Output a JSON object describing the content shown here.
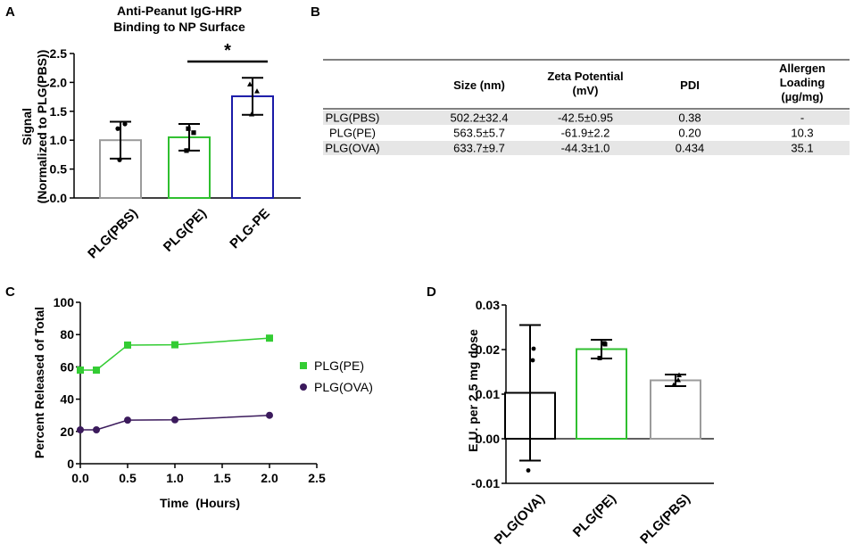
{
  "panels": [
    {
      "letter": "A"
    },
    {
      "letter": "B"
    },
    {
      "letter": "C"
    },
    {
      "letter": "D"
    }
  ],
  "colors": {
    "gray_bar": "#9b9b9b",
    "green_bar": "#2fbf2f",
    "blue_bar": "#1a1aa8",
    "pe_line": "#33cc33",
    "ova_line": "#3b1a5c",
    "table_shade": "#e6e6e6"
  },
  "chart_data": [
    {
      "id": "A",
      "type": "bar",
      "title": [
        "Anti-Peanut IgG-HRP",
        "Binding to NP Surface"
      ],
      "ylabel": [
        "Signal",
        "(Normalized to PLG(PBS))"
      ],
      "xlabel": "",
      "ylim": [
        0,
        2.5
      ],
      "yticks": [
        "0.0",
        "0.5",
        "1.0",
        "1.5",
        "2.0",
        "2.5"
      ],
      "categories": [
        "PLG(PBS)",
        "PLG(PE)",
        "PLG-PE"
      ],
      "values": [
        1.0,
        1.05,
        1.76
      ],
      "error": [
        0.32,
        0.23,
        0.32
      ],
      "points": [
        [
          1.2,
          1.28,
          0.66
        ],
        [
          0.82,
          1.13,
          1.2
        ],
        [
          1.97,
          1.85,
          1.45
        ]
      ],
      "colors": [
        "#9b9b9b",
        "#2fbf2f",
        "#1a1aa8"
      ],
      "significance": {
        "between": [
          "PLG(PE)",
          "PLG-PE"
        ],
        "label": "*"
      }
    },
    {
      "id": "C",
      "type": "line",
      "title": "",
      "xlabel": "Time  (Hours)",
      "ylabel": "Percent Released of Total",
      "xlim": [
        0,
        2.5
      ],
      "ylim": [
        0,
        100
      ],
      "xticks": [
        "0.0",
        "0.5",
        "1.0",
        "1.5",
        "2.0",
        "2.5"
      ],
      "yticks": [
        "0",
        "20",
        "40",
        "60",
        "80",
        "100"
      ],
      "series": [
        {
          "name": "PLG(PE)",
          "x": [
            0,
            0.17,
            0.5,
            1.0,
            2.0
          ],
          "y": [
            58,
            58,
            73.5,
            73.7,
            77.8
          ],
          "marker": "square",
          "color": "#33cc33"
        },
        {
          "name": "PLG(OVA)",
          "x": [
            0,
            0.17,
            0.5,
            1.0,
            2.0
          ],
          "y": [
            21,
            21,
            27,
            27.2,
            30
          ],
          "marker": "circle",
          "color": "#3b1a5c"
        }
      ],
      "legend": "right"
    },
    {
      "id": "D",
      "type": "bar",
      "title": "",
      "ylabel": "E.U. per 2.5 mg dose",
      "xlabel": "",
      "ylim": [
        -0.01,
        0.03
      ],
      "yticks": [
        "-0.01",
        "0.00",
        "0.01",
        "0.02",
        "0.03"
      ],
      "categories": [
        "PLG(OVA)",
        "PLG(PE)",
        "PLG(PBS)"
      ],
      "values": [
        0.0103,
        0.0201,
        0.0131
      ],
      "error": [
        0.0152,
        0.0021,
        0.0013
      ],
      "points": [
        [
          0.0202,
          0.0176,
          -0.0071
        ],
        [
          0.0212,
          0.0214,
          0.0181
        ],
        [
          0.0143,
          0.0132,
          0.0121
        ]
      ],
      "colors": [
        "#000000",
        "#2fbf2f",
        "#9b9b9b"
      ],
      "zero_line": true
    }
  ],
  "table": {
    "headers": [
      "",
      "Size (nm)",
      "Zeta Potential (mV)",
      "PDI",
      "Allergen Loading (µg/mg)"
    ],
    "header_lines": [
      [
        ""
      ],
      [
        "Size (nm)"
      ],
      [
        "Zeta Potential",
        "(mV)"
      ],
      [
        "PDI"
      ],
      [
        "Allergen",
        "Loading",
        "(µg/mg)"
      ]
    ],
    "rows": [
      [
        "PLG(PBS)",
        "502.2±32.4",
        "-42.5±0.95",
        "0.38",
        "-"
      ],
      [
        "PLG(PE)",
        "563.5±5.7",
        "-61.9±2.2",
        "0.20",
        "10.3"
      ],
      [
        "PLG(OVA)",
        "633.7±9.7",
        "-44.3±1.0",
        "0.434",
        "35.1"
      ]
    ]
  }
}
